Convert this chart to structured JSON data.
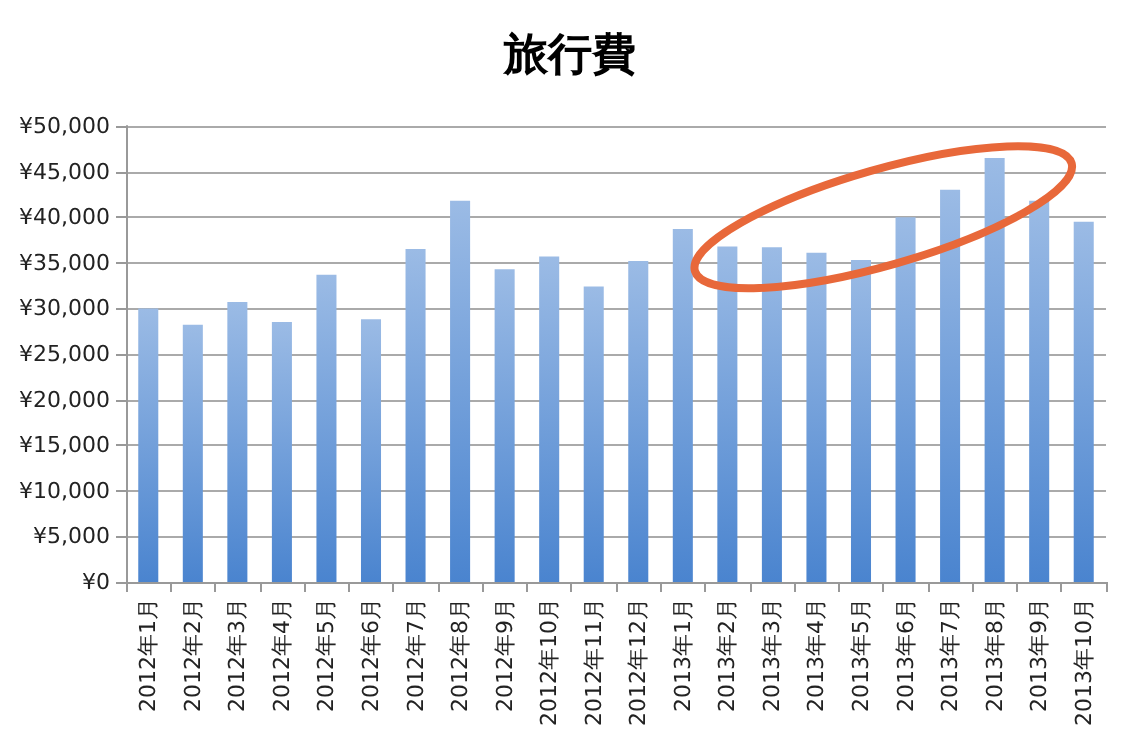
{
  "chart_data": {
    "type": "bar",
    "title": "旅行費",
    "categories": [
      "2012年1月",
      "2012年2月",
      "2012年3月",
      "2012年4月",
      "2012年5月",
      "2012年6月",
      "2012年7月",
      "2012年8月",
      "2012年9月",
      "2012年10月",
      "2012年11月",
      "2012年12月",
      "2013年1月",
      "2013年2月",
      "2013年3月",
      "2013年4月",
      "2013年5月",
      "2013年6月",
      "2013年7月",
      "2013年8月",
      "2013年9月",
      "2013年10月"
    ],
    "values": [
      30000,
      28200,
      30700,
      28500,
      33700,
      28800,
      36500,
      41800,
      34300,
      35700,
      32400,
      35200,
      38700,
      36800,
      36700,
      36100,
      35300,
      40000,
      43000,
      46500,
      41800,
      39500
    ],
    "color": "#4a84cf",
    "ylim": [
      0,
      50000
    ],
    "yticks": [
      {
        "value": 0,
        "label": "¥0"
      },
      {
        "value": 5000,
        "label": "¥5,000"
      },
      {
        "value": 10000,
        "label": "¥10,000"
      },
      {
        "value": 15000,
        "label": "¥15,000"
      },
      {
        "value": 20000,
        "label": "¥20,000"
      },
      {
        "value": 25000,
        "label": "¥25,000"
      },
      {
        "value": 30000,
        "label": "¥30,000"
      },
      {
        "value": 35000,
        "label": "¥35,000"
      },
      {
        "value": 40000,
        "label": "¥40,000"
      },
      {
        "value": 45000,
        "label": "¥45,000"
      },
      {
        "value": 50000,
        "label": "¥50,000"
      }
    ],
    "grid": "y"
  }
}
